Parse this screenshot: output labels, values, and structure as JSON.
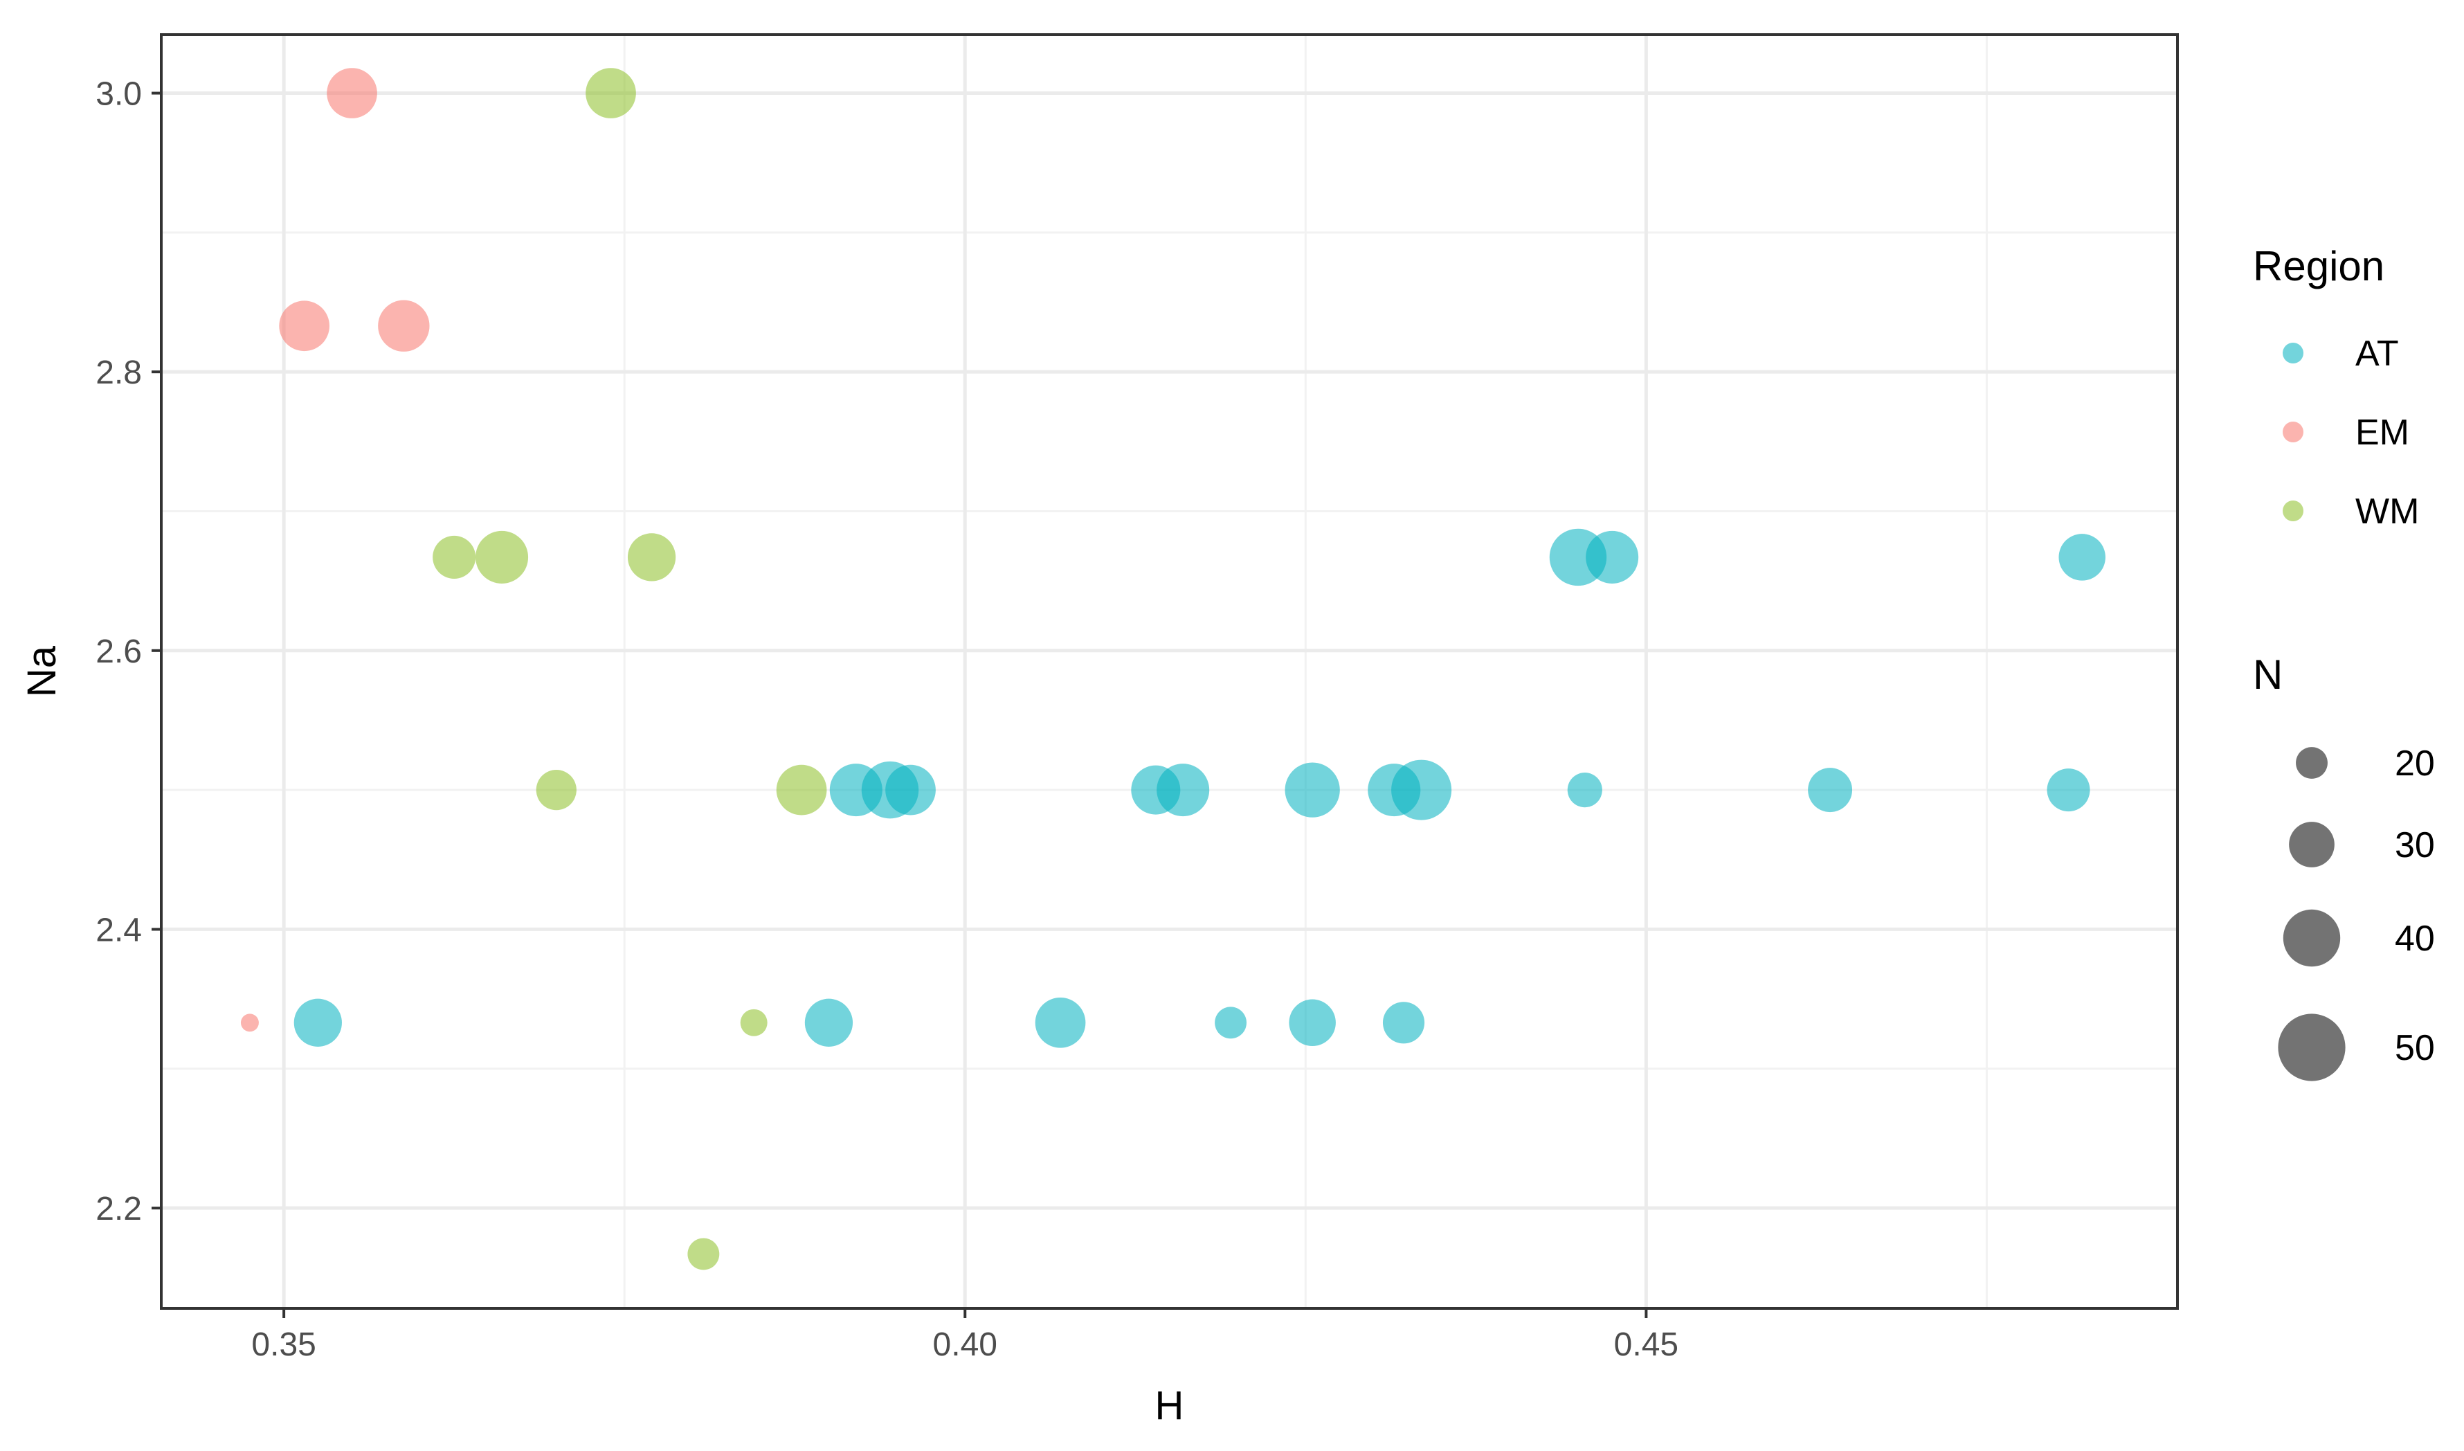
{
  "chart_data": {
    "type": "scatter",
    "xlabel": "H",
    "ylabel": "Na",
    "xlim": [
      0.341,
      0.489
    ],
    "ylim": [
      2.128,
      3.042
    ],
    "x_ticks": [
      0.35,
      0.4,
      0.45
    ],
    "x_tick_labels": [
      "0.35",
      "0.40",
      "0.45"
    ],
    "y_ticks": [
      2.2,
      2.4,
      2.6,
      2.8,
      3.0
    ],
    "y_tick_labels": [
      "2.2",
      "2.4",
      "2.6",
      "2.8",
      "3.0"
    ],
    "grid": true,
    "legend_position": "right",
    "color_legend": {
      "title": "Region",
      "entries": [
        {
          "label": "AT",
          "color": "#00B0C0"
        },
        {
          "label": "EM",
          "color": "#F8766D"
        },
        {
          "label": "WM",
          "color": "#8CBF26"
        }
      ]
    },
    "size_legend": {
      "title": "N",
      "values": [
        20,
        30,
        40,
        50
      ],
      "labels": [
        "20",
        "30",
        "40",
        "50"
      ]
    },
    "size_range": [
      10,
      52
    ],
    "point_alpha": 0.55,
    "series": [
      {
        "region": "AT",
        "points": [
          {
            "x": 0.3525,
            "y": 2.333,
            "n": 32
          },
          {
            "x": 0.39,
            "y": 2.333,
            "n": 32
          },
          {
            "x": 0.407,
            "y": 2.333,
            "n": 34
          },
          {
            "x": 0.4195,
            "y": 2.333,
            "n": 20
          },
          {
            "x": 0.4255,
            "y": 2.333,
            "n": 31
          },
          {
            "x": 0.4322,
            "y": 2.333,
            "n": 27
          },
          {
            "x": 0.392,
            "y": 2.5,
            "n": 36
          },
          {
            "x": 0.3945,
            "y": 2.5,
            "n": 40
          },
          {
            "x": 0.396,
            "y": 2.5,
            "n": 34
          },
          {
            "x": 0.414,
            "y": 2.5,
            "n": 33
          },
          {
            "x": 0.416,
            "y": 2.5,
            "n": 36
          },
          {
            "x": 0.4255,
            "y": 2.5,
            "n": 38
          },
          {
            "x": 0.4315,
            "y": 2.5,
            "n": 36
          },
          {
            "x": 0.4335,
            "y": 2.5,
            "n": 43
          },
          {
            "x": 0.4455,
            "y": 2.5,
            "n": 22
          },
          {
            "x": 0.4635,
            "y": 2.5,
            "n": 29
          },
          {
            "x": 0.481,
            "y": 2.5,
            "n": 28
          },
          {
            "x": 0.445,
            "y": 2.667,
            "n": 40
          },
          {
            "x": 0.4475,
            "y": 2.667,
            "n": 36
          },
          {
            "x": 0.482,
            "y": 2.667,
            "n": 31
          }
        ]
      },
      {
        "region": "EM",
        "points": [
          {
            "x": 0.3475,
            "y": 2.333,
            "n": 12
          },
          {
            "x": 0.3515,
            "y": 2.833,
            "n": 34
          },
          {
            "x": 0.3588,
            "y": 2.833,
            "n": 35
          },
          {
            "x": 0.355,
            "y": 3.0,
            "n": 34
          }
        ]
      },
      {
        "region": "WM",
        "points": [
          {
            "x": 0.3808,
            "y": 2.167,
            "n": 20
          },
          {
            "x": 0.3845,
            "y": 2.333,
            "n": 17
          },
          {
            "x": 0.37,
            "y": 2.5,
            "n": 26
          },
          {
            "x": 0.388,
            "y": 2.5,
            "n": 34
          },
          {
            "x": 0.3625,
            "y": 2.667,
            "n": 28
          },
          {
            "x": 0.366,
            "y": 2.667,
            "n": 36
          },
          {
            "x": 0.377,
            "y": 2.667,
            "n": 32
          },
          {
            "x": 0.374,
            "y": 3.0,
            "n": 34
          }
        ]
      }
    ]
  }
}
